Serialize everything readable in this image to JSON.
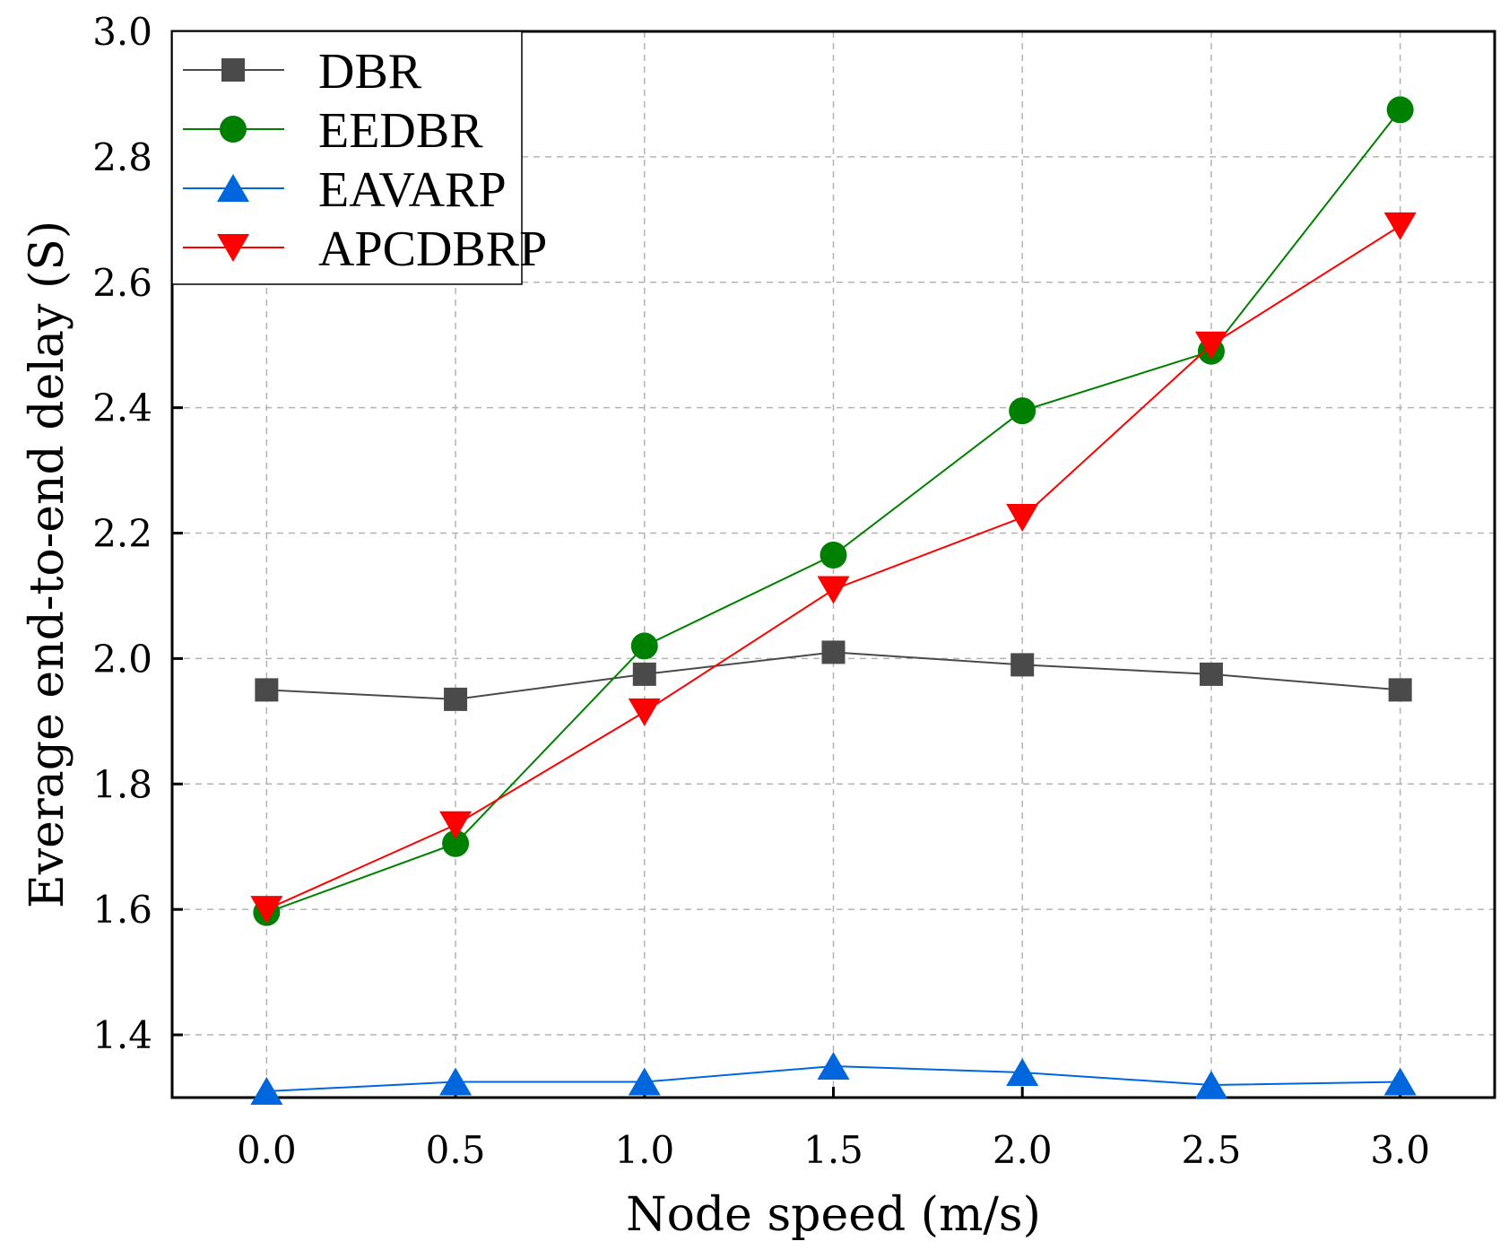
{
  "chart_data": {
    "type": "line",
    "title": "",
    "xlabel": "Node speed (m/s)",
    "ylabel": "Everage end-to-end delay (S)",
    "x": [
      0.0,
      0.5,
      1.0,
      1.5,
      2.0,
      2.5,
      3.0
    ],
    "x_tick_labels": [
      "0.0",
      "0.5",
      "1.0",
      "1.5",
      "2.0",
      "2.5",
      "3.0"
    ],
    "xlim": [
      -0.25,
      3.25
    ],
    "ylim": [
      1.3,
      3.0
    ],
    "y_ticks": [
      1.4,
      1.6,
      1.8,
      2.0,
      2.2,
      2.4,
      2.6,
      2.8,
      3.0
    ],
    "y_tick_labels": [
      "1.4",
      "1.6",
      "1.8",
      "2.0",
      "2.2",
      "2.4",
      "2.6",
      "2.8",
      "3.0"
    ],
    "grid": true,
    "legend_position": "top-left",
    "series": [
      {
        "name": "DBR",
        "color": "#4a4a4a",
        "marker": "square",
        "values": [
          1.95,
          1.935,
          1.975,
          2.01,
          1.99,
          1.975,
          1.95
        ]
      },
      {
        "name": "EEDBR",
        "color": "#008000",
        "marker": "circle",
        "values": [
          1.595,
          1.705,
          2.02,
          2.165,
          2.395,
          2.49,
          2.875
        ]
      },
      {
        "name": "EAVARP",
        "color": "#0066dd",
        "marker": "triangle-up",
        "values": [
          1.31,
          1.325,
          1.325,
          1.35,
          1.34,
          1.32,
          1.325
        ]
      },
      {
        "name": "APCDBRP",
        "color": "#ff0000",
        "marker": "triangle-down",
        "values": [
          1.6,
          1.735,
          1.915,
          2.11,
          2.225,
          2.5,
          2.69
        ]
      }
    ]
  }
}
